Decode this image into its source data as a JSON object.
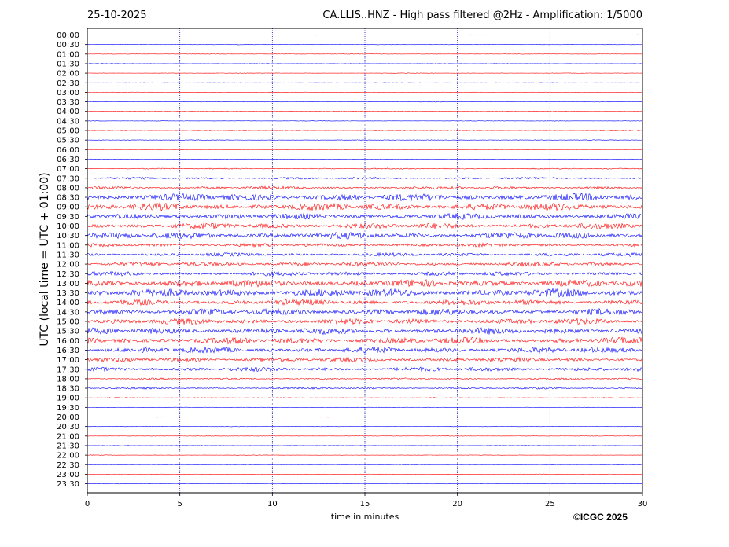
{
  "header": {
    "date": "25-10-2025",
    "title": "CA.LLIS..HNZ - High pass filtered @2Hz - Amplification: 1/5000"
  },
  "footer": {
    "copyright": "©ICGC 2025"
  },
  "chart_data": {
    "type": "line",
    "subtype": "helicorder",
    "xlabel": "time in minutes",
    "ylabel": "UTC (local time = UTC + 01:00)",
    "xlim": [
      0,
      30
    ],
    "xticks": [
      0,
      5,
      10,
      15,
      20,
      25,
      30
    ],
    "grid_x": "dotted blue at each major tick",
    "trace_colors": [
      "#ff0000",
      "#0000ff"
    ],
    "rows": [
      {
        "label": "00:00",
        "amp": 0.3
      },
      {
        "label": "00:30",
        "amp": 0.3
      },
      {
        "label": "01:00",
        "amp": 0.3
      },
      {
        "label": "01:30",
        "amp": 0.3
      },
      {
        "label": "02:00",
        "amp": 0.3
      },
      {
        "label": "02:30",
        "amp": 0.3
      },
      {
        "label": "03:00",
        "amp": 0.3
      },
      {
        "label": "03:30",
        "amp": 0.4
      },
      {
        "label": "04:00",
        "amp": 0.4
      },
      {
        "label": "04:30",
        "amp": 0.3
      },
      {
        "label": "05:00",
        "amp": 0.5
      },
      {
        "label": "05:30",
        "amp": 0.4
      },
      {
        "label": "06:00",
        "amp": 0.3
      },
      {
        "label": "06:30",
        "amp": 0.3
      },
      {
        "label": "07:00",
        "amp": 0.8
      },
      {
        "label": "07:30",
        "amp": 1.5
      },
      {
        "label": "08:00",
        "amp": 2
      },
      {
        "label": "08:30",
        "amp": 5
      },
      {
        "label": "09:00",
        "amp": 5
      },
      {
        "label": "09:30",
        "amp": 4
      },
      {
        "label": "10:00",
        "amp": 4
      },
      {
        "label": "10:30",
        "amp": 4.5
      },
      {
        "label": "11:00",
        "amp": 2.5
      },
      {
        "label": "11:30",
        "amp": 2.5
      },
      {
        "label": "12:00",
        "amp": 3
      },
      {
        "label": "12:30",
        "amp": 3
      },
      {
        "label": "13:00",
        "amp": 5
      },
      {
        "label": "13:30",
        "amp": 5.5
      },
      {
        "label": "14:00",
        "amp": 4
      },
      {
        "label": "14:30",
        "amp": 4.5
      },
      {
        "label": "15:00",
        "amp": 4
      },
      {
        "label": "15:30",
        "amp": 4.5
      },
      {
        "label": "16:00",
        "amp": 4.5
      },
      {
        "label": "16:30",
        "amp": 4
      },
      {
        "label": "17:00",
        "amp": 3
      },
      {
        "label": "17:30",
        "amp": 3
      },
      {
        "label": "18:00",
        "amp": 1.2
      },
      {
        "label": "18:30",
        "amp": 1.2
      },
      {
        "label": "19:00",
        "amp": 0.6
      },
      {
        "label": "19:30",
        "amp": 0.3
      },
      {
        "label": "20:00",
        "amp": 0.3
      },
      {
        "label": "20:30",
        "amp": 0.3
      },
      {
        "label": "21:00",
        "amp": 0.3
      },
      {
        "label": "21:30",
        "amp": 0.3
      },
      {
        "label": "22:00",
        "amp": 0.3
      },
      {
        "label": "22:30",
        "amp": 0.3
      },
      {
        "label": "23:00",
        "amp": 0.3
      },
      {
        "label": "23:30",
        "amp": 0.3
      }
    ]
  }
}
